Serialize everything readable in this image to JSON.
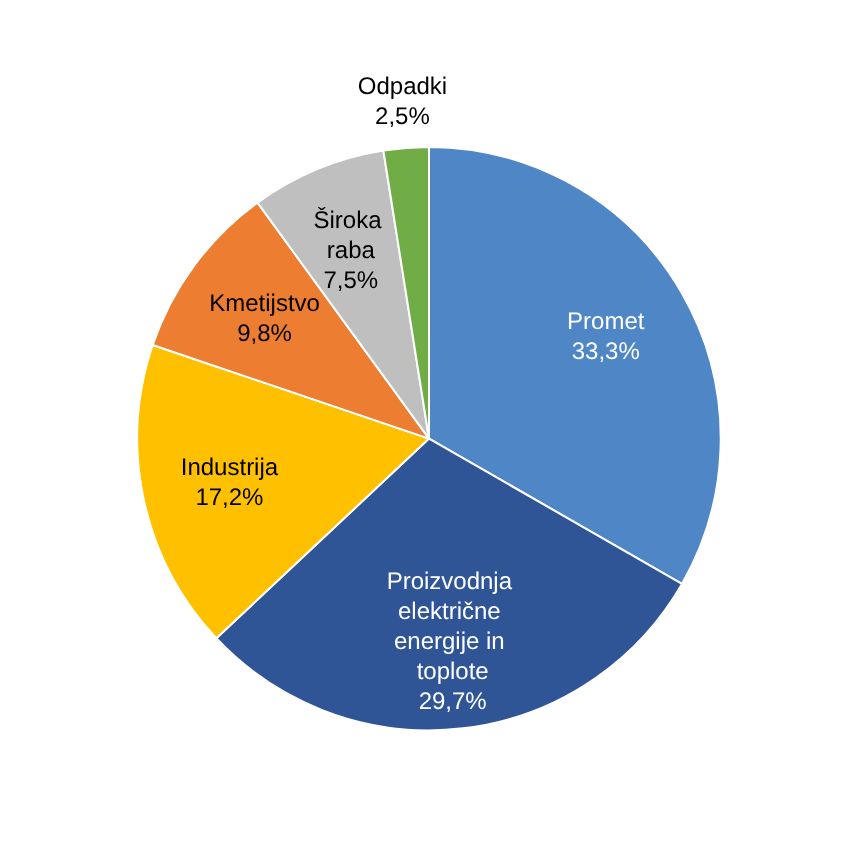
{
  "chart_data": {
    "type": "pie",
    "categories": [
      "Promet",
      "Proizvodnja električne energije in toplote",
      "Industrija",
      "Kmetijstvo",
      "Široka raba",
      "Odpadki"
    ],
    "values": [
      33.3,
      29.7,
      17.2,
      9.8,
      7.5,
      2.5
    ],
    "value_labels": [
      "33,3%",
      "29,7%",
      "17,2%",
      "9,8%",
      "7,5%",
      "2,5%"
    ],
    "colors": [
      "#4f86c6",
      "#2f5597",
      "#ffc000",
      "#ed7d31",
      "#bfbfbf",
      "#70ad47"
    ],
    "legend": false
  }
}
